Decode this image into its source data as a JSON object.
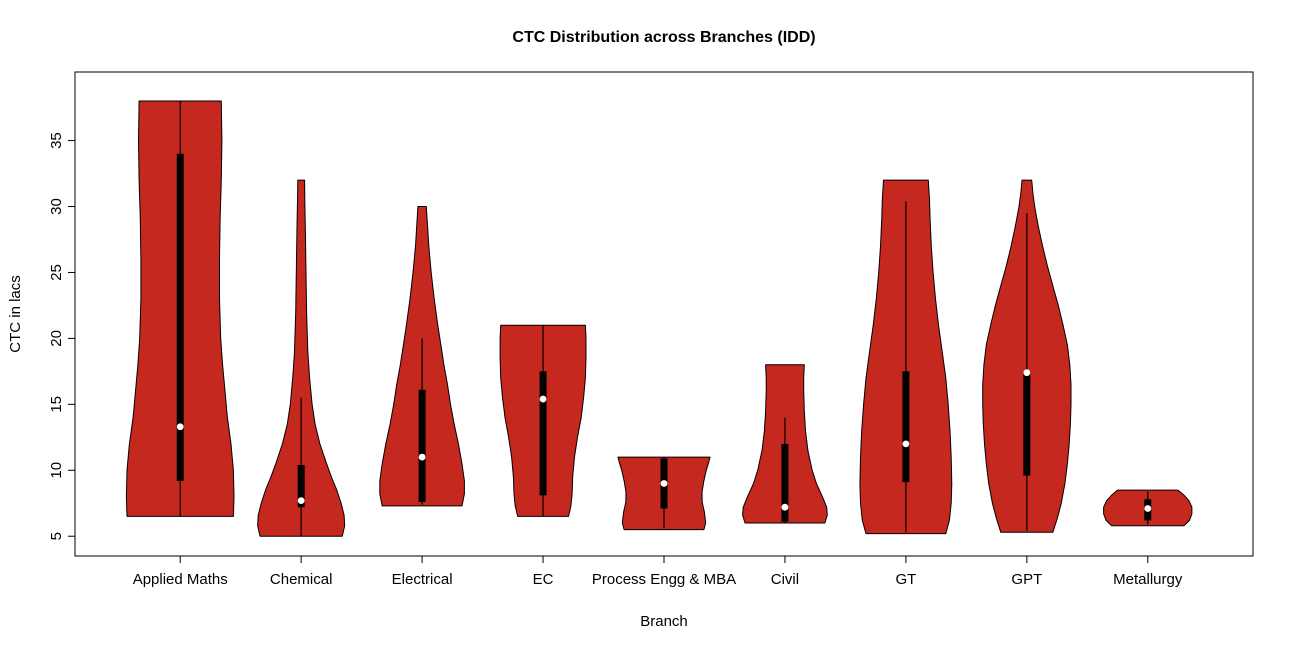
{
  "chart_data": {
    "type": "violin",
    "title": "CTC Distribution across Branches (IDD)",
    "xlabel": "Branch",
    "ylabel": "CTC in lacs",
    "ylim": [
      3.5,
      40.2
    ],
    "yticks": [
      5,
      10,
      15,
      20,
      25,
      30,
      35
    ],
    "grid": false,
    "legend": "none",
    "fill_color": "#C5281E",
    "outline_color": "#000000",
    "box_color": "#000000",
    "median_dot_color": "#ffffff",
    "categories": [
      "Applied Maths",
      "Chemical",
      "Electrical",
      "EC",
      "Process Engg & MBA",
      "Civil",
      "GT",
      "GPT",
      "Metallurgy"
    ],
    "series": [
      {
        "name": "Applied Maths",
        "min": 6.5,
        "max": 38,
        "whisker_low": 6.5,
        "whisker_high": 38,
        "q1": 9.2,
        "median": 13.3,
        "q3": 34,
        "profile": [
          [
            6.5,
            0.44
          ],
          [
            8,
            0.445
          ],
          [
            10,
            0.44
          ],
          [
            12,
            0.42
          ],
          [
            14,
            0.39
          ],
          [
            16,
            0.37
          ],
          [
            18,
            0.35
          ],
          [
            20,
            0.335
          ],
          [
            23,
            0.325
          ],
          [
            26,
            0.325
          ],
          [
            29,
            0.33
          ],
          [
            32,
            0.34
          ],
          [
            35,
            0.345
          ],
          [
            38,
            0.34
          ]
        ]
      },
      {
        "name": "Chemical",
        "min": 5,
        "max": 32,
        "whisker_low": 5,
        "whisker_high": 15.5,
        "q1": 7.2,
        "median": 7.7,
        "q3": 10.4,
        "profile": [
          [
            5,
            0.34
          ],
          [
            5.8,
            0.36
          ],
          [
            6.6,
            0.355
          ],
          [
            7.5,
            0.33
          ],
          [
            8.5,
            0.295
          ],
          [
            9.5,
            0.25
          ],
          [
            10.5,
            0.21
          ],
          [
            12,
            0.155
          ],
          [
            13.5,
            0.115
          ],
          [
            15,
            0.09
          ],
          [
            17,
            0.07
          ],
          [
            19,
            0.055
          ],
          [
            22,
            0.045
          ],
          [
            25,
            0.04
          ],
          [
            28,
            0.035
          ],
          [
            30.5,
            0.03
          ],
          [
            32,
            0.028
          ]
        ]
      },
      {
        "name": "Electrical",
        "min": 7.3,
        "max": 30,
        "whisker_low": 7.4,
        "whisker_high": 20,
        "q1": 7.6,
        "median": 11,
        "q3": 16.1,
        "profile": [
          [
            7.3,
            0.33
          ],
          [
            8.2,
            0.35
          ],
          [
            9.2,
            0.35
          ],
          [
            10.5,
            0.33
          ],
          [
            12,
            0.3
          ],
          [
            13.5,
            0.265
          ],
          [
            15,
            0.235
          ],
          [
            16.5,
            0.21
          ],
          [
            18,
            0.18
          ],
          [
            19.5,
            0.155
          ],
          [
            21,
            0.13
          ],
          [
            23,
            0.1
          ],
          [
            25,
            0.075
          ],
          [
            27,
            0.055
          ],
          [
            28.5,
            0.045
          ],
          [
            30,
            0.035
          ]
        ]
      },
      {
        "name": "EC",
        "min": 6.5,
        "max": 21,
        "whisker_low": 6.5,
        "whisker_high": 21,
        "q1": 8.1,
        "median": 15.4,
        "q3": 17.5,
        "profile": [
          [
            6.5,
            0.21
          ],
          [
            7.3,
            0.23
          ],
          [
            8.2,
            0.24
          ],
          [
            9.5,
            0.245
          ],
          [
            11,
            0.26
          ],
          [
            12.5,
            0.285
          ],
          [
            14,
            0.315
          ],
          [
            15.5,
            0.335
          ],
          [
            17,
            0.35
          ],
          [
            18.5,
            0.355
          ],
          [
            20,
            0.355
          ],
          [
            21,
            0.35
          ]
        ]
      },
      {
        "name": "Process Engg & MBA",
        "min": 5.5,
        "max": 11,
        "whisker_low": 5.6,
        "whisker_high": 11,
        "q1": 7.1,
        "median": 9,
        "q3": 10.9,
        "profile": [
          [
            5.5,
            0.33
          ],
          [
            6,
            0.345
          ],
          [
            6.8,
            0.335
          ],
          [
            7.6,
            0.315
          ],
          [
            8.4,
            0.315
          ],
          [
            9.2,
            0.33
          ],
          [
            10,
            0.35
          ],
          [
            10.6,
            0.37
          ],
          [
            11,
            0.38
          ]
        ]
      },
      {
        "name": "Civil",
        "min": 6,
        "max": 18,
        "whisker_low": 6,
        "whisker_high": 14,
        "q1": 6.1,
        "median": 7.2,
        "q3": 12,
        "profile": [
          [
            6,
            0.33
          ],
          [
            6.6,
            0.35
          ],
          [
            7.2,
            0.345
          ],
          [
            8,
            0.31
          ],
          [
            9,
            0.26
          ],
          [
            10,
            0.225
          ],
          [
            11.5,
            0.19
          ],
          [
            13,
            0.17
          ],
          [
            14.5,
            0.16
          ],
          [
            16,
            0.155
          ],
          [
            17,
            0.155
          ],
          [
            18,
            0.16
          ]
        ]
      },
      {
        "name": "GT",
        "min": 5.2,
        "max": 32,
        "whisker_low": 5.3,
        "whisker_high": 30.4,
        "q1": 9.1,
        "median": 12,
        "q3": 17.5,
        "profile": [
          [
            5.2,
            0.33
          ],
          [
            6.2,
            0.36
          ],
          [
            7.5,
            0.375
          ],
          [
            9,
            0.38
          ],
          [
            11,
            0.375
          ],
          [
            13,
            0.365
          ],
          [
            15,
            0.35
          ],
          [
            17,
            0.33
          ],
          [
            19,
            0.3
          ],
          [
            21,
            0.27
          ],
          [
            23,
            0.245
          ],
          [
            25,
            0.225
          ],
          [
            27,
            0.21
          ],
          [
            29,
            0.2
          ],
          [
            30.5,
            0.195
          ],
          [
            32,
            0.185
          ]
        ]
      },
      {
        "name": "GPT",
        "min": 5.3,
        "max": 32,
        "whisker_low": 5.4,
        "whisker_high": 29.5,
        "q1": 9.6,
        "median": 17.4,
        "q3": 17.5,
        "profile": [
          [
            5.3,
            0.215
          ],
          [
            6.3,
            0.25
          ],
          [
            7.5,
            0.285
          ],
          [
            9,
            0.315
          ],
          [
            10.5,
            0.335
          ],
          [
            12,
            0.35
          ],
          [
            13.5,
            0.36
          ],
          [
            15,
            0.365
          ],
          [
            16.5,
            0.365
          ],
          [
            18,
            0.355
          ],
          [
            19.5,
            0.335
          ],
          [
            21,
            0.3
          ],
          [
            22.5,
            0.26
          ],
          [
            24,
            0.215
          ],
          [
            25.5,
            0.17
          ],
          [
            27,
            0.13
          ],
          [
            28.5,
            0.095
          ],
          [
            30,
            0.065
          ],
          [
            31,
            0.05
          ],
          [
            32,
            0.04
          ]
        ]
      },
      {
        "name": "Metallurgy",
        "min": 5.8,
        "max": 8.5,
        "whisker_low": 5.9,
        "whisker_high": 8.4,
        "q1": 6.2,
        "median": 7.1,
        "q3": 7.8,
        "profile": [
          [
            5.8,
            0.3
          ],
          [
            6.2,
            0.345
          ],
          [
            6.7,
            0.365
          ],
          [
            7.2,
            0.365
          ],
          [
            7.7,
            0.34
          ],
          [
            8.1,
            0.3
          ],
          [
            8.5,
            0.25
          ]
        ]
      }
    ]
  }
}
